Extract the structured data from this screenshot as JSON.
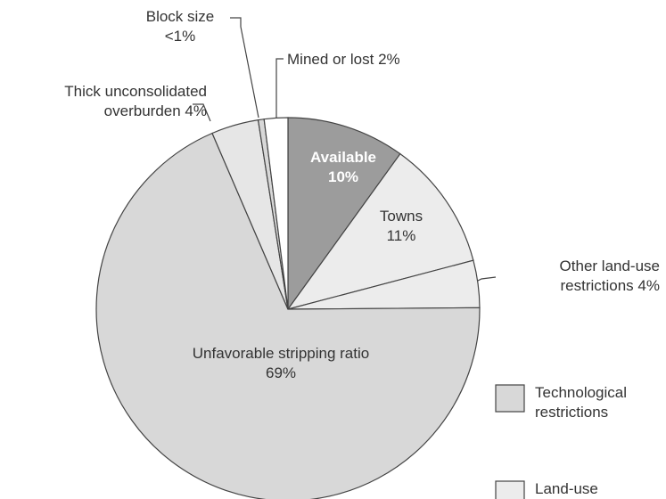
{
  "chart_data": {
    "type": "pie",
    "categories": [
      "Available",
      "Towns",
      "Other land-use restrictions",
      "Unfavorable stripping ratio",
      "Thick unconsolidated overburden",
      "Block size",
      "Mined or lost"
    ],
    "values": [
      10,
      11,
      4,
      69,
      4,
      0.5,
      2
    ],
    "value_labels": [
      "10%",
      "11%",
      "4%",
      "69%",
      "4%",
      "<1%",
      "2%"
    ],
    "colors": [
      "#9c9c9c",
      "#ececec",
      "#ececec",
      "#d8d8d8",
      "#e6e6e6",
      "#d8d8d8",
      "#ffffff"
    ],
    "legend": [
      {
        "name": "Technological restrictions",
        "color": "#d8d8d8"
      },
      {
        "name": "Land-use restrictions",
        "color": "#ececec"
      }
    ]
  }
}
